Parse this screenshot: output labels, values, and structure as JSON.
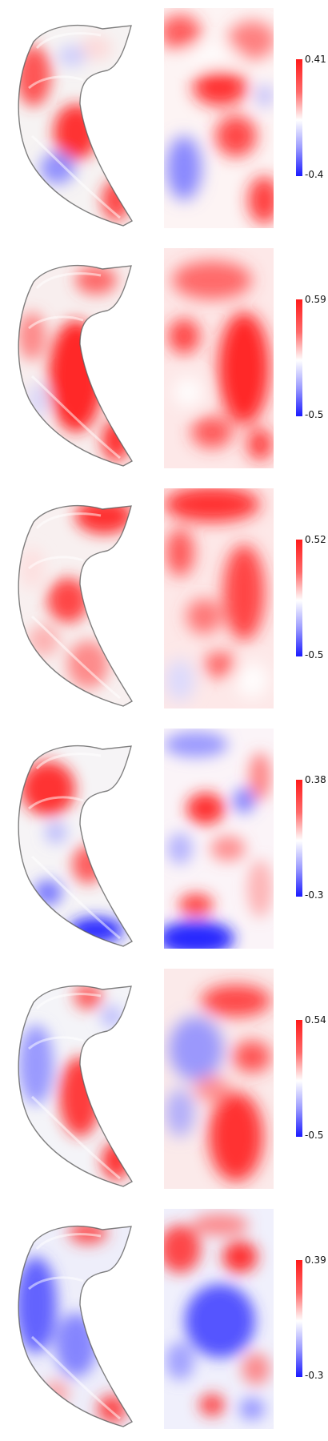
{
  "panels": [
    {
      "colorbar": {
        "max_label": "0.41",
        "min_label": "-0.4"
      }
    },
    {
      "colorbar": {
        "max_label": "0.59",
        "min_label": "-0.5"
      }
    },
    {
      "colorbar": {
        "max_label": "0.52",
        "min_label": "-0.5"
      }
    },
    {
      "colorbar": {
        "max_label": "0.38",
        "min_label": "-0.3"
      }
    },
    {
      "colorbar": {
        "max_label": "0.54",
        "min_label": "-0.5"
      }
    },
    {
      "colorbar": {
        "max_label": "0.39",
        "min_label": "-0.3"
      }
    }
  ],
  "colors": {
    "positive": "#ff1a1a",
    "neutral": "#ffffff",
    "negative": "#1a1aff"
  }
}
